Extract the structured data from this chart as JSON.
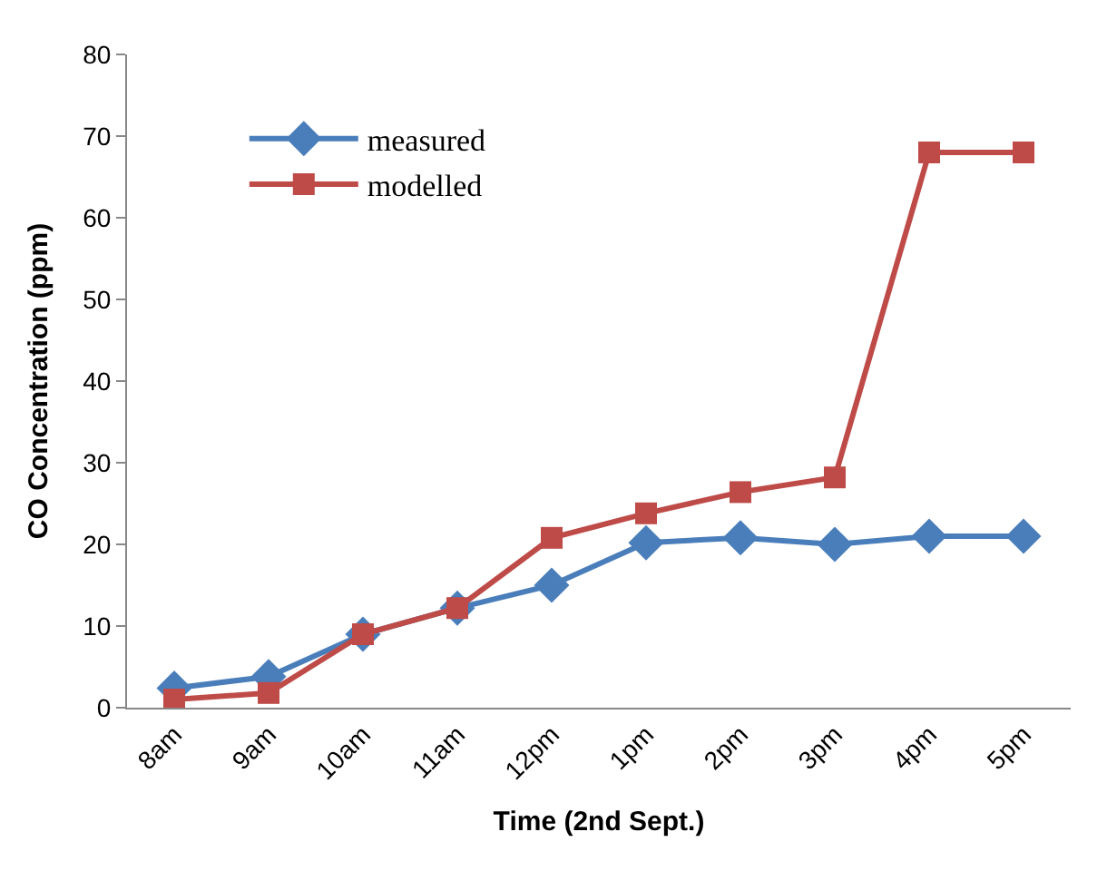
{
  "chart_data": {
    "type": "line",
    "xlabel": "Time (2nd Sept.)",
    "ylabel": "CO Concentration (ppm)",
    "categories": [
      "8am",
      "9am",
      "10am",
      "11am",
      "12pm",
      "1pm",
      "2pm",
      "3pm",
      "4pm",
      "5pm"
    ],
    "series": [
      {
        "name": "measured",
        "color": "#4a7ebb",
        "marker": "diamond",
        "values": [
          2.4,
          3.8,
          9,
          12.2,
          15,
          20.2,
          20.8,
          20,
          21,
          21
        ]
      },
      {
        "name": "modelled",
        "color": "#be4b48",
        "marker": "square",
        "values": [
          1,
          1.8,
          9,
          12.2,
          20.8,
          23.8,
          26.4,
          28.2,
          68,
          68
        ]
      }
    ],
    "ylim": [
      0,
      80
    ],
    "yticks": [
      0,
      10,
      20,
      30,
      40,
      50,
      60,
      70,
      80
    ],
    "grid": false,
    "legend": "top left",
    "line_style": "solid"
  }
}
